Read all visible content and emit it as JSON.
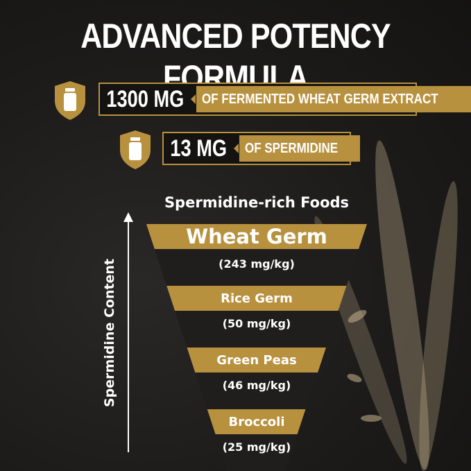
{
  "header": {
    "title": "ADVANCED POTENCY FORMULA"
  },
  "badges": [
    {
      "amount": "1300 MG",
      "label": "OF FERMENTED WHEAT GERM EXTRACT",
      "icon": "bottle-shield-icon"
    },
    {
      "amount": "13 MG",
      "label": "OF SPERMIDINE",
      "icon": "bottle-shield-icon"
    }
  ],
  "foods": {
    "title": "Spermidine-rich Foods",
    "axis_label": "Spermidine Content",
    "items": [
      {
        "name": "Wheat Germ",
        "value": "(243 mg/kg)"
      },
      {
        "name": "Rice Germ",
        "value": "(50 mg/kg)"
      },
      {
        "name": "Green Peas",
        "value": "(46 mg/kg)"
      },
      {
        "name": "Broccoli",
        "value": "(25 mg/kg)"
      }
    ]
  },
  "colors": {
    "gold": "#b8913f",
    "background": "#1a1918"
  }
}
